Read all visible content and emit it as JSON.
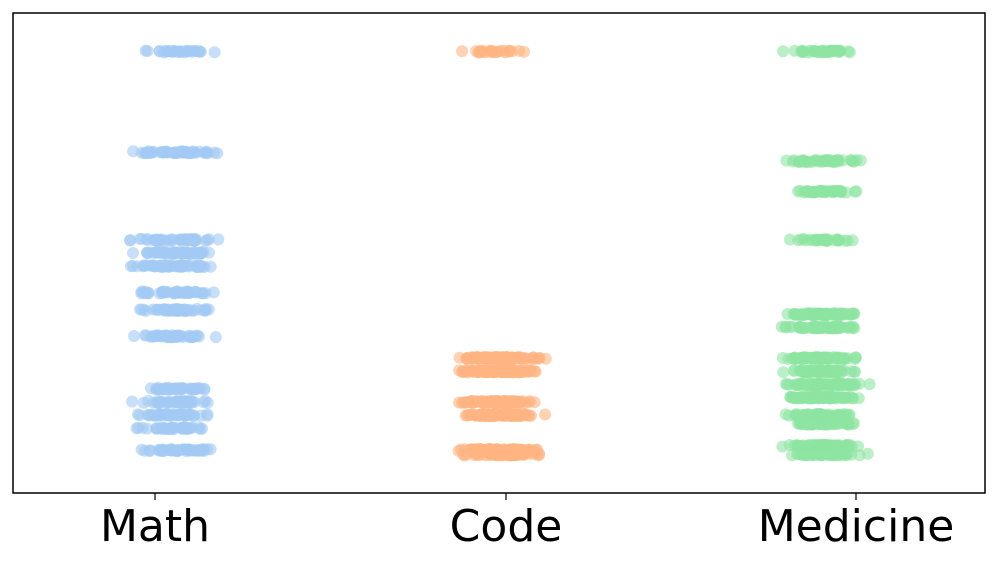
{
  "chart_data": {
    "type": "scatter",
    "style": "strip",
    "title": "",
    "xlabel": "",
    "ylabel": "",
    "categories": [
      "Math",
      "Code",
      "Medicine"
    ],
    "ylim": [
      0,
      1
    ],
    "y_ticks_shown": false,
    "grid": false,
    "legend": "none",
    "jitter": 0.25,
    "series": [
      {
        "category": "Math",
        "color": "#a1c9f4",
        "levels": [
          {
            "y": 0.96,
            "count": 28
          },
          {
            "y": 0.73,
            "count": 50
          },
          {
            "y": 0.53,
            "count": 45
          },
          {
            "y": 0.5,
            "count": 60
          },
          {
            "y": 0.47,
            "count": 55
          },
          {
            "y": 0.41,
            "count": 45
          },
          {
            "y": 0.37,
            "count": 60
          },
          {
            "y": 0.31,
            "count": 45
          },
          {
            "y": 0.19,
            "count": 40
          },
          {
            "y": 0.16,
            "count": 45
          },
          {
            "y": 0.13,
            "count": 45
          },
          {
            "y": 0.1,
            "count": 40
          },
          {
            "y": 0.05,
            "count": 50
          }
        ]
      },
      {
        "category": "Code",
        "color": "#ffb482",
        "levels": [
          {
            "y": 0.96,
            "count": 22
          },
          {
            "y": 0.26,
            "count": 150
          },
          {
            "y": 0.23,
            "count": 150
          },
          {
            "y": 0.16,
            "count": 110
          },
          {
            "y": 0.13,
            "count": 120
          },
          {
            "y": 0.05,
            "count": 130
          },
          {
            "y": 0.04,
            "count": 60
          }
        ]
      },
      {
        "category": "Medicine",
        "color": "#8de5a1",
        "levels": [
          {
            "y": 0.96,
            "count": 40
          },
          {
            "y": 0.71,
            "count": 45
          },
          {
            "y": 0.64,
            "count": 40
          },
          {
            "y": 0.53,
            "count": 30
          },
          {
            "y": 0.36,
            "count": 80
          },
          {
            "y": 0.33,
            "count": 80
          },
          {
            "y": 0.26,
            "count": 80
          },
          {
            "y": 0.23,
            "count": 90
          },
          {
            "y": 0.2,
            "count": 90
          },
          {
            "y": 0.17,
            "count": 90
          },
          {
            "y": 0.13,
            "count": 60
          },
          {
            "y": 0.11,
            "count": 40
          },
          {
            "y": 0.06,
            "count": 70
          },
          {
            "y": 0.04,
            "count": 40
          }
        ]
      }
    ]
  }
}
